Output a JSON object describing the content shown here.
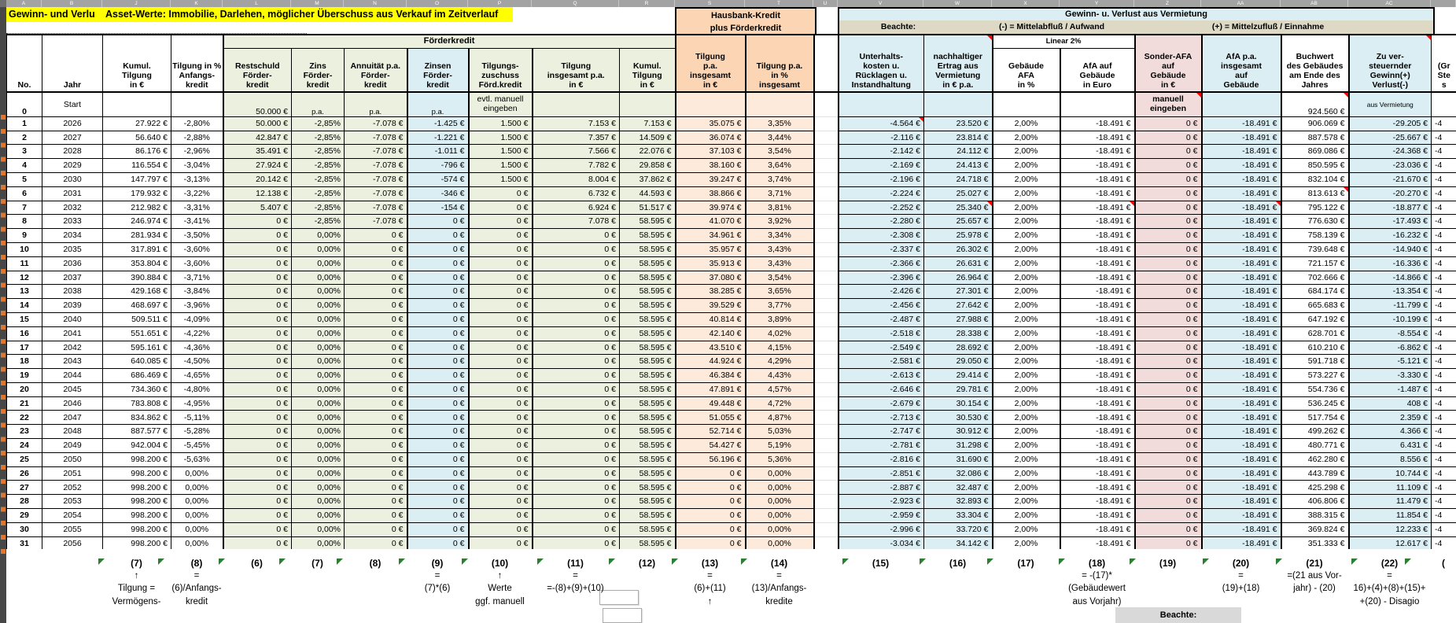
{
  "titles": {
    "left_clipped": "Gewinn- und Verlu",
    "main": "Asset-Werte: Immobilie, Darlehen, möglicher Überschuss aus Verkauf im Zeitverlauf",
    "hausbank_line1": "Hausbank-Kredit",
    "hausbank_line2": "plus Förderkredit",
    "vermietung": "Gewinn- u. Verlust aus Vermietung",
    "beachte_label": "Beachte:",
    "beachte_neg": "(-) = Mittelabfluß / Aufwand",
    "beachte_pos": "(+) = Mittelzufluß / Einnahme",
    "foerderkredit_group": "Förderkredit",
    "linear_group": "Linear 2%",
    "beachte_bottom": "Beachte:"
  },
  "column_letters": [
    "A",
    "B",
    "J",
    "K",
    "L",
    "M",
    "N",
    "O",
    "P",
    "Q",
    "R",
    "S",
    "T",
    "U",
    "V",
    "W",
    "X",
    "Y",
    "Z",
    "AA",
    "AB",
    "AC",
    ""
  ],
  "headers": {
    "no": [
      "No."
    ],
    "jahr": [
      "Jahr"
    ],
    "kumul": [
      "Kumul.",
      "Tilgung",
      "in €"
    ],
    "tilgpct": [
      "Tilgung in %",
      "Anfangs-",
      "kredit"
    ],
    "rest": [
      "Restschuld",
      "Förder-",
      "kredit"
    ],
    "zins": [
      "Zins",
      "Förder-",
      "kredit"
    ],
    "annu": [
      "Annuität p.a.",
      "Förder-",
      "kredit"
    ],
    "zinsen": [
      "Zinsen",
      "Förder-",
      "kredit"
    ],
    "zusch": [
      "Tilgungs-",
      "zuschuss",
      "Förd.kredit"
    ],
    "tilgins": [
      "Tilgung",
      "insgesamt p.a.",
      "in €"
    ],
    "kumul2": [
      "Kumul.",
      "Tilgung",
      "in €"
    ],
    "hbtilg": [
      "Tilgung",
      "p.a.",
      "insgesamt",
      "in €"
    ],
    "hbpct": [
      "Tilgung p.a.",
      "in %",
      "insgesamt"
    ],
    "gap": [],
    "unt": [
      "Unterhalts-",
      "kosten u.",
      "Rücklagen u.",
      "Instandhaltung"
    ],
    "ert": [
      "nachhaltiger",
      "Ertrag aus",
      "Vermietung",
      "in € p.a."
    ],
    "afapct": [
      "Gebäude",
      "AFA",
      "in %"
    ],
    "afaeur": [
      "AfA auf",
      "Gebäude",
      "in Euro"
    ],
    "sonder": [
      "Sonder-AFA",
      "auf",
      "Gebäude",
      "in €"
    ],
    "afains": [
      "AfA p.a.",
      "insgesamt",
      "auf",
      "Gebäude"
    ],
    "buch": [
      "Buchwert",
      "des Gebäudes",
      "am Ende des",
      "Jahres"
    ],
    "ver": [
      "Zu ver-",
      "steuernder",
      "Gewinn(+)",
      "Verlust(-)"
    ],
    "part": [
      "(Gr",
      "Ste",
      "s"
    ]
  },
  "row0": {
    "no": "0",
    "jahr": "Start",
    "rest": "50.000 €",
    "zins": "p.a.",
    "annu": "p.a.",
    "zinsen": "p.a.",
    "zusch_line1": "evtl. manuell",
    "zusch_line2": "eingeben",
    "sonder_line1": "manuell",
    "sonder_line2": "eingeben",
    "buch": "924.560 €",
    "ver": "aus Vermietung"
  },
  "rows": [
    [
      "1",
      "2026",
      "27.922 €",
      "-2,80%",
      "50.000 €",
      "-2,85%",
      "-7.078 €",
      "-1.425 €",
      "1.500 €",
      "7.153 €",
      "7.153 €",
      "35.075 €",
      "3,35%",
      "",
      "-4.564 €",
      "23.520 €",
      "2,00%",
      "-18.491 €",
      "0 €",
      "-18.491 €",
      "906.069 €",
      "-29.205 €",
      "-4"
    ],
    [
      "2",
      "2027",
      "56.640 €",
      "-2,88%",
      "42.847 €",
      "-2,85%",
      "-7.078 €",
      "-1.221 €",
      "1.500 €",
      "7.357 €",
      "14.509 €",
      "36.074 €",
      "3,44%",
      "",
      "-2.116 €",
      "23.814 €",
      "2,00%",
      "-18.491 €",
      "0 €",
      "-18.491 €",
      "887.578 €",
      "-25.667 €",
      "-4"
    ],
    [
      "3",
      "2028",
      "86.176 €",
      "-2,96%",
      "35.491 €",
      "-2,85%",
      "-7.078 €",
      "-1.011 €",
      "1.500 €",
      "7.566 €",
      "22.076 €",
      "37.103 €",
      "3,54%",
      "",
      "-2.142 €",
      "24.112 €",
      "2,00%",
      "-18.491 €",
      "0 €",
      "-18.491 €",
      "869.086 €",
      "-24.368 €",
      "-4"
    ],
    [
      "4",
      "2029",
      "116.554 €",
      "-3,04%",
      "27.924 €",
      "-2,85%",
      "-7.078 €",
      "-796 €",
      "1.500 €",
      "7.782 €",
      "29.858 €",
      "38.160 €",
      "3,64%",
      "",
      "-2.169 €",
      "24.413 €",
      "2,00%",
      "-18.491 €",
      "0 €",
      "-18.491 €",
      "850.595 €",
      "-23.036 €",
      "-4"
    ],
    [
      "5",
      "2030",
      "147.797 €",
      "-3,13%",
      "20.142 €",
      "-2,85%",
      "-7.078 €",
      "-574 €",
      "1.500 €",
      "8.004 €",
      "37.862 €",
      "39.247 €",
      "3,74%",
      "",
      "-2.196 €",
      "24.718 €",
      "2,00%",
      "-18.491 €",
      "0 €",
      "-18.491 €",
      "832.104 €",
      "-21.670 €",
      "-4"
    ],
    [
      "6",
      "2031",
      "179.932 €",
      "-3,22%",
      "12.138 €",
      "-2,85%",
      "-7.078 €",
      "-346 €",
      "0 €",
      "6.732 €",
      "44.593 €",
      "38.866 €",
      "3,71%",
      "",
      "-2.224 €",
      "25.027 €",
      "2,00%",
      "-18.491 €",
      "0 €",
      "-18.491 €",
      "813.613 €",
      "-20.270 €",
      "-4"
    ],
    [
      "7",
      "2032",
      "212.982 €",
      "-3,31%",
      "5.407 €",
      "-2,85%",
      "-7.078 €",
      "-154 €",
      "0 €",
      "6.924 €",
      "51.517 €",
      "39.974 €",
      "3,81%",
      "",
      "-2.252 €",
      "25.340 €",
      "2,00%",
      "-18.491 €",
      "0 €",
      "-18.491 €",
      "795.122 €",
      "-18.877 €",
      "-4"
    ],
    [
      "8",
      "2033",
      "246.974 €",
      "-3,41%",
      "0 €",
      "-2,85%",
      "-7.078 €",
      "0 €",
      "0 €",
      "7.078 €",
      "58.595 €",
      "41.070 €",
      "3,92%",
      "",
      "-2.280 €",
      "25.657 €",
      "2,00%",
      "-18.491 €",
      "0 €",
      "-18.491 €",
      "776.630 €",
      "-17.493 €",
      "-4"
    ],
    [
      "9",
      "2034",
      "281.934 €",
      "-3,50%",
      "0 €",
      "0,00%",
      "0 €",
      "0 €",
      "0 €",
      "0 €",
      "58.595 €",
      "34.961 €",
      "3,34%",
      "",
      "-2.308 €",
      "25.978 €",
      "2,00%",
      "-18.491 €",
      "0 €",
      "-18.491 €",
      "758.139 €",
      "-16.232 €",
      "-4"
    ],
    [
      "10",
      "2035",
      "317.891 €",
      "-3,60%",
      "0 €",
      "0,00%",
      "0 €",
      "0 €",
      "0 €",
      "0 €",
      "58.595 €",
      "35.957 €",
      "3,43%",
      "",
      "-2.337 €",
      "26.302 €",
      "2,00%",
      "-18.491 €",
      "0 €",
      "-18.491 €",
      "739.648 €",
      "-14.940 €",
      "-4"
    ],
    [
      "11",
      "2036",
      "353.804 €",
      "-3,60%",
      "0 €",
      "0,00%",
      "0 €",
      "0 €",
      "0 €",
      "0 €",
      "58.595 €",
      "35.913 €",
      "3,43%",
      "",
      "-2.366 €",
      "26.631 €",
      "2,00%",
      "-18.491 €",
      "0 €",
      "-18.491 €",
      "721.157 €",
      "-16.336 €",
      "-4"
    ],
    [
      "12",
      "2037",
      "390.884 €",
      "-3,71%",
      "0 €",
      "0,00%",
      "0 €",
      "0 €",
      "0 €",
      "0 €",
      "58.595 €",
      "37.080 €",
      "3,54%",
      "",
      "-2.396 €",
      "26.964 €",
      "2,00%",
      "-18.491 €",
      "0 €",
      "-18.491 €",
      "702.666 €",
      "-14.866 €",
      "-4"
    ],
    [
      "13",
      "2038",
      "429.168 €",
      "-3,84%",
      "0 €",
      "0,00%",
      "0 €",
      "0 €",
      "0 €",
      "0 €",
      "58.595 €",
      "38.285 €",
      "3,65%",
      "",
      "-2.426 €",
      "27.301 €",
      "2,00%",
      "-18.491 €",
      "0 €",
      "-18.491 €",
      "684.174 €",
      "-13.354 €",
      "-4"
    ],
    [
      "14",
      "2039",
      "468.697 €",
      "-3,96%",
      "0 €",
      "0,00%",
      "0 €",
      "0 €",
      "0 €",
      "0 €",
      "58.595 €",
      "39.529 €",
      "3,77%",
      "",
      "-2.456 €",
      "27.642 €",
      "2,00%",
      "-18.491 €",
      "0 €",
      "-18.491 €",
      "665.683 €",
      "-11.799 €",
      "-4"
    ],
    [
      "15",
      "2040",
      "509.511 €",
      "-4,09%",
      "0 €",
      "0,00%",
      "0 €",
      "0 €",
      "0 €",
      "0 €",
      "58.595 €",
      "40.814 €",
      "3,89%",
      "",
      "-2.487 €",
      "27.988 €",
      "2,00%",
      "-18.491 €",
      "0 €",
      "-18.491 €",
      "647.192 €",
      "-10.199 €",
      "-4"
    ],
    [
      "16",
      "2041",
      "551.651 €",
      "-4,22%",
      "0 €",
      "0,00%",
      "0 €",
      "0 €",
      "0 €",
      "0 €",
      "58.595 €",
      "42.140 €",
      "4,02%",
      "",
      "-2.518 €",
      "28.338 €",
      "2,00%",
      "-18.491 €",
      "0 €",
      "-18.491 €",
      "628.701 €",
      "-8.554 €",
      "-4"
    ],
    [
      "17",
      "2042",
      "595.161 €",
      "-4,36%",
      "0 €",
      "0,00%",
      "0 €",
      "0 €",
      "0 €",
      "0 €",
      "58.595 €",
      "43.510 €",
      "4,15%",
      "",
      "-2.549 €",
      "28.692 €",
      "2,00%",
      "-18.491 €",
      "0 €",
      "-18.491 €",
      "610.210 €",
      "-6.862 €",
      "-4"
    ],
    [
      "18",
      "2043",
      "640.085 €",
      "-4,50%",
      "0 €",
      "0,00%",
      "0 €",
      "0 €",
      "0 €",
      "0 €",
      "58.595 €",
      "44.924 €",
      "4,29%",
      "",
      "-2.581 €",
      "29.050 €",
      "2,00%",
      "-18.491 €",
      "0 €",
      "-18.491 €",
      "591.718 €",
      "-5.121 €",
      "-4"
    ],
    [
      "19",
      "2044",
      "686.469 €",
      "-4,65%",
      "0 €",
      "0,00%",
      "0 €",
      "0 €",
      "0 €",
      "0 €",
      "58.595 €",
      "46.384 €",
      "4,43%",
      "",
      "-2.613 €",
      "29.414 €",
      "2,00%",
      "-18.491 €",
      "0 €",
      "-18.491 €",
      "573.227 €",
      "-3.330 €",
      "-4"
    ],
    [
      "20",
      "2045",
      "734.360 €",
      "-4,80%",
      "0 €",
      "0,00%",
      "0 €",
      "0 €",
      "0 €",
      "0 €",
      "58.595 €",
      "47.891 €",
      "4,57%",
      "",
      "-2.646 €",
      "29.781 €",
      "2,00%",
      "-18.491 €",
      "0 €",
      "-18.491 €",
      "554.736 €",
      "-1.487 €",
      "-4"
    ],
    [
      "21",
      "2046",
      "783.808 €",
      "-4,95%",
      "0 €",
      "0,00%",
      "0 €",
      "0 €",
      "0 €",
      "0 €",
      "58.595 €",
      "49.448 €",
      "4,72%",
      "",
      "-2.679 €",
      "30.154 €",
      "2,00%",
      "-18.491 €",
      "0 €",
      "-18.491 €",
      "536.245 €",
      "408 €",
      "-4"
    ],
    [
      "22",
      "2047",
      "834.862 €",
      "-5,11%",
      "0 €",
      "0,00%",
      "0 €",
      "0 €",
      "0 €",
      "0 €",
      "58.595 €",
      "51.055 €",
      "4,87%",
      "",
      "-2.713 €",
      "30.530 €",
      "2,00%",
      "-18.491 €",
      "0 €",
      "-18.491 €",
      "517.754 €",
      "2.359 €",
      "-4"
    ],
    [
      "23",
      "2048",
      "887.577 €",
      "-5,28%",
      "0 €",
      "0,00%",
      "0 €",
      "0 €",
      "0 €",
      "0 €",
      "58.595 €",
      "52.714 €",
      "5,03%",
      "",
      "-2.747 €",
      "30.912 €",
      "2,00%",
      "-18.491 €",
      "0 €",
      "-18.491 €",
      "499.262 €",
      "4.366 €",
      "-4"
    ],
    [
      "24",
      "2049",
      "942.004 €",
      "-5,45%",
      "0 €",
      "0,00%",
      "0 €",
      "0 €",
      "0 €",
      "0 €",
      "58.595 €",
      "54.427 €",
      "5,19%",
      "",
      "-2.781 €",
      "31.298 €",
      "2,00%",
      "-18.491 €",
      "0 €",
      "-18.491 €",
      "480.771 €",
      "6.431 €",
      "-4"
    ],
    [
      "25",
      "2050",
      "998.200 €",
      "-5,63%",
      "0 €",
      "0,00%",
      "0 €",
      "0 €",
      "0 €",
      "0 €",
      "58.595 €",
      "56.196 €",
      "5,36%",
      "",
      "-2.816 €",
      "31.690 €",
      "2,00%",
      "-18.491 €",
      "0 €",
      "-18.491 €",
      "462.280 €",
      "8.556 €",
      "-4"
    ],
    [
      "26",
      "2051",
      "998.200 €",
      "0,00%",
      "0 €",
      "0,00%",
      "0 €",
      "0 €",
      "0 €",
      "0 €",
      "58.595 €",
      "0 €",
      "0,00%",
      "",
      "-2.851 €",
      "32.086 €",
      "2,00%",
      "-18.491 €",
      "0 €",
      "-18.491 €",
      "443.789 €",
      "10.744 €",
      "-4"
    ],
    [
      "27",
      "2052",
      "998.200 €",
      "0,00%",
      "0 €",
      "0,00%",
      "0 €",
      "0 €",
      "0 €",
      "0 €",
      "58.595 €",
      "0 €",
      "0,00%",
      "",
      "-2.887 €",
      "32.487 €",
      "2,00%",
      "-18.491 €",
      "0 €",
      "-18.491 €",
      "425.298 €",
      "11.109 €",
      "-4"
    ],
    [
      "28",
      "2053",
      "998.200 €",
      "0,00%",
      "0 €",
      "0,00%",
      "0 €",
      "0 €",
      "0 €",
      "0 €",
      "58.595 €",
      "0 €",
      "0,00%",
      "",
      "-2.923 €",
      "32.893 €",
      "2,00%",
      "-18.491 €",
      "0 €",
      "-18.491 €",
      "406.806 €",
      "11.479 €",
      "-4"
    ],
    [
      "29",
      "2054",
      "998.200 €",
      "0,00%",
      "0 €",
      "0,00%",
      "0 €",
      "0 €",
      "0 €",
      "0 €",
      "58.595 €",
      "0 €",
      "0,00%",
      "",
      "-2.959 €",
      "33.304 €",
      "2,00%",
      "-18.491 €",
      "0 €",
      "-18.491 €",
      "388.315 €",
      "11.854 €",
      "-4"
    ],
    [
      "30",
      "2055",
      "998.200 €",
      "0,00%",
      "0 €",
      "0,00%",
      "0 €",
      "0 €",
      "0 €",
      "0 €",
      "58.595 €",
      "0 €",
      "0,00%",
      "",
      "-2.996 €",
      "33.720 €",
      "2,00%",
      "-18.491 €",
      "0 €",
      "-18.491 €",
      "369.824 €",
      "12.233 €",
      "-4"
    ],
    [
      "31",
      "2056",
      "998.200 €",
      "0,00%",
      "0 €",
      "0,00%",
      "0 €",
      "0 €",
      "0 €",
      "0 €",
      "58.595 €",
      "0 €",
      "0,00%",
      "",
      "-3.034 €",
      "34.142 €",
      "2,00%",
      "-18.491 €",
      "0 €",
      "-18.491 €",
      "351.333 €",
      "12.617 €",
      "-4"
    ]
  ],
  "footnotes": [
    {
      "col": "kumul",
      "lines": [
        "(7)",
        "↑",
        "Tilgung =",
        "Vermögens-"
      ]
    },
    {
      "col": "tilgpct",
      "lines": [
        "(8)",
        "=",
        "(6)/Anfangs-",
        "kredit"
      ]
    },
    {
      "col": "rest",
      "lines": [
        "(6)"
      ]
    },
    {
      "col": "zins",
      "lines": [
        "(7)"
      ]
    },
    {
      "col": "annu",
      "lines": [
        "(8)"
      ]
    },
    {
      "col": "zinsen",
      "lines": [
        "(9)",
        "=",
        "(7)*(6)"
      ]
    },
    {
      "col": "zusch",
      "lines": [
        "(10)",
        "↑",
        "Werte",
        "ggf. manuell"
      ]
    },
    {
      "col": "tilgins",
      "lines": [
        "(11)",
        "=",
        "=-(8)+(9)+(10)"
      ]
    },
    {
      "col": "kumul2",
      "lines": [
        "(12)"
      ]
    },
    {
      "col": "hbtilg",
      "lines": [
        "(13)",
        "=",
        "(6)+(11)",
        "↑"
      ]
    },
    {
      "col": "hbpct",
      "lines": [
        "(14)",
        "=",
        "(13)/Anfangs-",
        "kredite"
      ]
    },
    {
      "col": "unt",
      "lines": [
        "(15)"
      ]
    },
    {
      "col": "ert",
      "lines": [
        "(16)"
      ]
    },
    {
      "col": "afapct",
      "lines": [
        "(17)"
      ]
    },
    {
      "col": "afaeur",
      "lines": [
        "(18)",
        "= -(17)*",
        "(Gebäudewert",
        "aus Vorjahr)"
      ]
    },
    {
      "col": "sonder",
      "lines": [
        "(19)"
      ]
    },
    {
      "col": "afains",
      "lines": [
        "(20)",
        "=",
        "(19)+(18)"
      ]
    },
    {
      "col": "buch",
      "lines": [
        "(21)",
        "=(21 aus Vor-",
        "jahr) - (20)"
      ]
    },
    {
      "col": "ver",
      "lines": [
        "(22)",
        "=",
        "16)+(4)+(8)+(15)+",
        "+(20) - Disagio"
      ]
    },
    {
      "col": "part",
      "lines": [
        "("
      ]
    }
  ],
  "red_markers": [
    {
      "row": "header",
      "col": "ert"
    },
    {
      "row": "header",
      "col": "ver"
    },
    {
      "row": "start",
      "col": "sonder"
    },
    {
      "row": "start",
      "col": "buch"
    },
    {
      "row": 1,
      "col": "unt"
    },
    {
      "row": 7,
      "col": "ert"
    },
    {
      "row": 7,
      "col": "afaeur"
    },
    {
      "row": 7,
      "col": "afains"
    },
    {
      "row": 6,
      "col": "buch"
    }
  ],
  "colors": {
    "title_yellow": "#ffff00",
    "green_block": "#ebf1de",
    "blue_block": "#daeef3",
    "hausbank_header": "#fbd5b4",
    "hausbank_cells": "#fdeada",
    "sonder_rose": "#f2dcdb",
    "beachte_tan": "#ddd9c4",
    "comment_marker": "#ff0000",
    "footnote_flag": "#2e7d32"
  }
}
